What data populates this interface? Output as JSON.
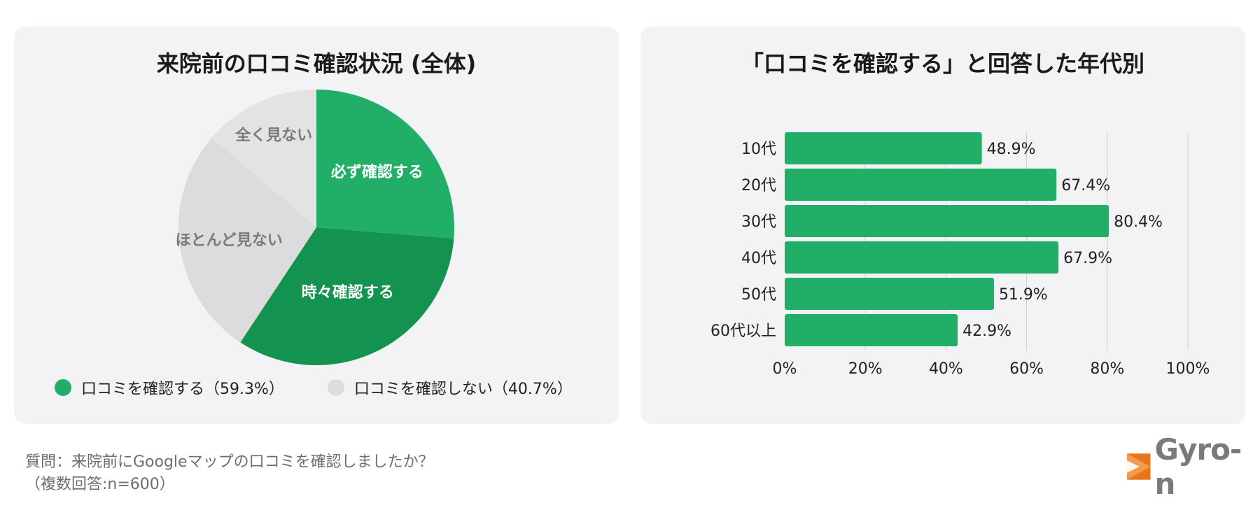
{
  "colors": {
    "green": "#21ae67",
    "dark_green": "#14924f",
    "light_gray": "#dcdcdc",
    "lighter_gray": "#e3e3e3",
    "panel_bg": "#f3f3f5",
    "logo_orange": "#e8751a"
  },
  "chart_data": [
    {
      "type": "pie",
      "title": "来院前の口コミ確認状況 (全体)",
      "slices": [
        {
          "label": "必ず確認する",
          "value": 26.3,
          "color": "#21ae67",
          "label_color": "#ffffff"
        },
        {
          "label": "時々確認する",
          "value": 33.0,
          "color": "#14924f",
          "label_color": "#ffffff"
        },
        {
          "label": "ほとんど見ない",
          "value": 27.0,
          "color": "#dcdcdc",
          "label_color": "#7a7a7a"
        },
        {
          "label": "全く見ない",
          "value": 13.7,
          "color": "#e3e3e3",
          "label_color": "#7a7a7a"
        }
      ],
      "legend": [
        {
          "label": "口コミを確認する（59.3%）",
          "color": "#21ae67"
        },
        {
          "label": "口コミを確認しない（40.7%）",
          "color": "#dcdcdc"
        }
      ]
    },
    {
      "type": "bar",
      "orientation": "horizontal",
      "title": "「口コミを確認する」と回答した年代別",
      "categories": [
        "10代",
        "20代",
        "30代",
        "40代",
        "50代",
        "60代以上"
      ],
      "values": [
        48.9,
        67.4,
        80.4,
        67.9,
        51.9,
        42.9
      ],
      "value_labels": [
        "48.9%",
        "67.4%",
        "80.4%",
        "67.9%",
        "51.9%",
        "42.9%"
      ],
      "xlim": [
        0,
        100
      ],
      "x_ticks": [
        0,
        20,
        40,
        60,
        80,
        100
      ],
      "x_tick_labels": [
        "0%",
        "20%",
        "40%",
        "60%",
        "80%",
        "100%"
      ],
      "grid": true,
      "color": "#21ae67"
    }
  ],
  "footer": {
    "question_line1": "質問：来院前にGoogleマップの口コミを確認しましたか？",
    "question_line2": "（複数回答:n=600）",
    "logo_text": "Gyro-n"
  }
}
